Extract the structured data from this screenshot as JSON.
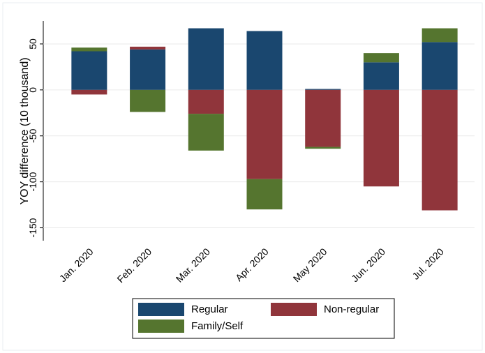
{
  "chart_data": {
    "type": "bar",
    "stacked": true,
    "y_label": "YOY difference (10 thousand)",
    "categories": [
      "Jan. 2020",
      "Feb. 2020",
      "Mar. 2020",
      "Apr. 2020",
      "May 2020",
      "Jun. 2020",
      "Jul. 2020"
    ],
    "series": [
      {
        "name": "Regular",
        "color": "#1a476f",
        "values": [
          42,
          44,
          67,
          64,
          1,
          30,
          52
        ]
      },
      {
        "name": "Non-regular",
        "color": "#90353b",
        "values": [
          -5,
          3,
          -26,
          -97,
          -62,
          -105,
          -131
        ]
      },
      {
        "name": "Family/Self",
        "color": "#55752f",
        "values": [
          4,
          -24,
          -40,
          -33,
          -2,
          10,
          15
        ]
      }
    ],
    "ylim": [
      -164,
      75
    ],
    "yticks": [
      50,
      0,
      -50,
      -100,
      -150
    ],
    "grid": true
  }
}
